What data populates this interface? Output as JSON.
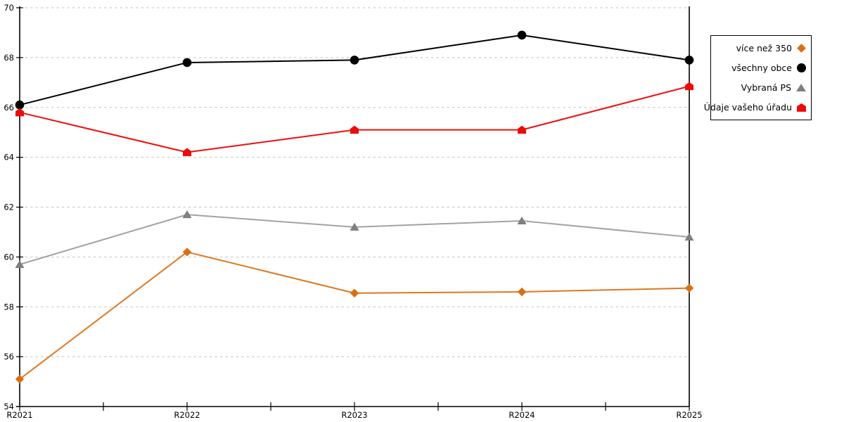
{
  "chart_data": {
    "type": "line",
    "title": "",
    "xlabel": "",
    "ylabel": "",
    "x": [
      "R2021",
      "R2022",
      "R2023",
      "R2024",
      "R2025"
    ],
    "series": [
      {
        "name": "více než 350",
        "marker": "diamond",
        "color": "#DE7820",
        "marker_color": "#D96F12",
        "values": [
          55.1,
          60.2,
          58.55,
          58.6,
          58.75
        ]
      },
      {
        "name": "všechny obce",
        "marker": "circle",
        "color": "#000000",
        "marker_color": "#000000",
        "values": [
          66.1,
          67.8,
          67.9,
          68.9,
          67.9
        ]
      },
      {
        "name": "Vybraná PS",
        "marker": "triangle",
        "color": "#A3A3A3",
        "marker_color": "#7F7F7F",
        "values": [
          59.7,
          61.7,
          61.2,
          61.45,
          60.8
        ]
      },
      {
        "name": "Údaje vašeho úřadu",
        "marker": "pentagon",
        "color": "#F00E0E",
        "marker_color": "#EE0A0A",
        "values": [
          65.8,
          64.2,
          65.1,
          65.1,
          66.85
        ]
      }
    ],
    "ylim": [
      54,
      70
    ],
    "yticks": [
      54,
      56,
      58,
      60,
      62,
      64,
      66,
      68,
      70
    ],
    "grid": "horizontal-dashed",
    "minor_xticks_between_categories": true,
    "legend_position": "right"
  },
  "colors": {
    "background": "#FFFFFF",
    "axis": "#000000",
    "grid": "#C3C3C3",
    "legend_border": "#000000",
    "text": "#000000"
  }
}
